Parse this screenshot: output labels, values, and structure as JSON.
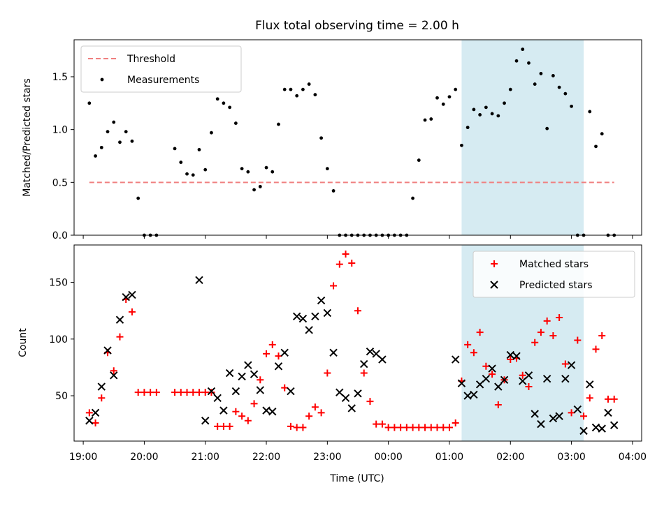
{
  "chart_data": {
    "title": "Flux total observing time = 2.00 h",
    "xlabel": "Time (UTC)",
    "x_ticks": [
      "19:00",
      "20:00",
      "21:00",
      "22:00",
      "23:00",
      "00:00",
      "01:00",
      "02:00",
      "03:00",
      "04:00"
    ],
    "x_range_hours_from_19": [
      -0.15,
      9.15
    ],
    "shaded_span": {
      "start": "01:12",
      "end": "03:12",
      "color": "#add8e6"
    },
    "panels": [
      {
        "type": "scatter",
        "ylabel": "Matched/Predicted stars",
        "ylim": [
          0,
          1.85
        ],
        "y_ticks": [
          0.0,
          0.5,
          1.0,
          1.5
        ],
        "legend_position": "upper-left",
        "threshold": {
          "name": "Threshold",
          "value": 0.5,
          "start": "19:06",
          "end": "03:42",
          "color": "#f08080"
        },
        "series": [
          {
            "name": "Measurements",
            "color": "#000000",
            "x": [
              "19:06",
              "19:12",
              "19:18",
              "19:24",
              "19:30",
              "19:36",
              "19:42",
              "19:48",
              "19:54",
              "20:00",
              "20:06",
              "20:12",
              "20:30",
              "20:36",
              "20:42",
              "20:48",
              "20:54",
              "21:00",
              "21:06",
              "21:12",
              "21:18",
              "21:24",
              "21:30",
              "21:36",
              "21:42",
              "21:48",
              "21:54",
              "22:00",
              "22:06",
              "22:12",
              "22:18",
              "22:24",
              "22:30",
              "22:36",
              "22:42",
              "22:48",
              "22:54",
              "23:00",
              "23:06",
              "23:12",
              "23:18",
              "23:24",
              "23:30",
              "23:36",
              "23:42",
              "23:48",
              "23:54",
              "00:00",
              "00:06",
              "00:12",
              "00:18",
              "00:24",
              "00:30",
              "00:36",
              "00:42",
              "00:48",
              "00:54",
              "01:00",
              "01:06",
              "01:12",
              "01:18",
              "01:24",
              "01:30",
              "01:36",
              "01:42",
              "01:48",
              "01:54",
              "02:00",
              "02:06",
              "02:12",
              "02:18",
              "02:24",
              "02:30",
              "02:36",
              "02:42",
              "02:48",
              "02:54",
              "03:00",
              "03:06",
              "03:12",
              "03:18",
              "03:24",
              "03:30",
              "03:36",
              "03:42"
            ],
            "y": [
              1.25,
              0.75,
              0.83,
              0.98,
              1.07,
              0.88,
              0.98,
              0.89,
              0.35,
              0.0,
              0.0,
              0.0,
              0.82,
              0.69,
              0.58,
              0.57,
              0.81,
              0.62,
              0.97,
              1.29,
              1.25,
              1.21,
              1.06,
              0.63,
              0.6,
              0.43,
              0.46,
              0.64,
              0.6,
              1.05,
              1.38,
              1.38,
              1.32,
              1.38,
              1.43,
              1.33,
              0.92,
              0.63,
              0.42,
              0.0,
              0.0,
              0.0,
              0.0,
              0.0,
              0.0,
              0.0,
              0.0,
              0.0,
              0.0,
              0.0,
              0.0,
              0.35,
              0.71,
              1.09,
              1.1,
              1.3,
              1.24,
              1.31,
              1.38,
              0.85,
              1.02,
              1.19,
              1.14,
              1.21,
              1.15,
              1.13,
              1.25,
              1.38,
              1.65,
              1.76,
              1.63,
              1.43,
              1.53,
              1.01,
              1.51,
              1.4,
              1.34,
              1.22,
              0.0,
              0.0,
              1.17,
              0.84,
              0.96,
              0.0,
              0.0
            ]
          }
        ]
      },
      {
        "type": "scatter",
        "ylabel": "Count",
        "ylim": [
          10,
          183
        ],
        "y_ticks": [
          50,
          100,
          150
        ],
        "legend_position": "upper-right",
        "series": [
          {
            "name": "Matched stars",
            "marker": "+",
            "color": "#ff0000",
            "x": [
              "19:06",
              "19:12",
              "19:18",
              "19:24",
              "19:30",
              "19:36",
              "19:42",
              "19:48",
              "19:54",
              "20:00",
              "20:06",
              "20:12",
              "20:30",
              "20:36",
              "20:42",
              "20:48",
              "20:54",
              "21:00",
              "21:06",
              "21:12",
              "21:18",
              "21:24",
              "21:30",
              "21:36",
              "21:42",
              "21:48",
              "21:54",
              "22:00",
              "22:06",
              "22:12",
              "22:18",
              "22:24",
              "22:30",
              "22:36",
              "22:42",
              "22:48",
              "22:54",
              "23:00",
              "23:06",
              "23:12",
              "23:18",
              "23:24",
              "23:30",
              "23:36",
              "23:42",
              "23:48",
              "23:54",
              "00:00",
              "00:06",
              "00:12",
              "00:18",
              "00:24",
              "00:30",
              "00:36",
              "00:42",
              "00:48",
              "00:54",
              "01:00",
              "01:06",
              "01:12",
              "01:18",
              "01:24",
              "01:30",
              "01:36",
              "01:42",
              "01:48",
              "01:54",
              "02:00",
              "02:06",
              "02:12",
              "02:18",
              "02:24",
              "02:30",
              "02:36",
              "02:42",
              "02:48",
              "02:54",
              "03:00",
              "03:06",
              "03:12",
              "03:18",
              "03:24",
              "03:30",
              "03:36",
              "03:42"
            ],
            "y": [
              35,
              26,
              48,
              88,
              72,
              102,
              135,
              124,
              53,
              53,
              53,
              53,
              53,
              53,
              53,
              53,
              53,
              53,
              53,
              23,
              23,
              23,
              36,
              32,
              28,
              43,
              64,
              87,
              95,
              85,
              57,
              23,
              22,
              22,
              32,
              40,
              35,
              70,
              147,
              166,
              175,
              167,
              125,
              70,
              45,
              25,
              25,
              22,
              22,
              22,
              22,
              22,
              22,
              22,
              22,
              22,
              22,
              22,
              26,
              63,
              95,
              88,
              106,
              76,
              69,
              42,
              64,
              82,
              83,
              68,
              58,
              97,
              106,
              116,
              103,
              119,
              78,
              35,
              99,
              32,
              48,
              91,
              103,
              47,
              47
            ]
          },
          {
            "name": "Predicted stars",
            "marker": "x",
            "color": "#000000",
            "x": [
              "19:06",
              "19:12",
              "19:18",
              "19:24",
              "19:30",
              "19:36",
              "19:42",
              "19:48",
              "20:54",
              "21:00",
              "21:06",
              "21:12",
              "21:18",
              "21:24",
              "21:30",
              "21:36",
              "21:42",
              "21:48",
              "21:54",
              "22:00",
              "22:06",
              "22:12",
              "22:18",
              "22:24",
              "22:30",
              "22:36",
              "22:42",
              "22:48",
              "22:54",
              "23:00",
              "23:06",
              "23:12",
              "23:18",
              "23:24",
              "23:30",
              "23:36",
              "23:42",
              "23:48",
              "23:54",
              "01:06",
              "01:12",
              "01:18",
              "01:24",
              "01:30",
              "01:36",
              "01:42",
              "01:48",
              "01:54",
              "02:00",
              "02:06",
              "02:12",
              "02:18",
              "02:24",
              "02:30",
              "02:36",
              "02:42",
              "02:48",
              "02:54",
              "03:00",
              "03:06",
              "03:12",
              "03:18",
              "03:24",
              "03:30",
              "03:36",
              "03:42"
            ],
            "y": [
              28,
              35,
              58,
              90,
              68,
              117,
              137,
              139,
              152,
              28,
              54,
              48,
              37,
              70,
              54,
              67,
              77,
              69,
              55,
              37,
              36,
              76,
              88,
              54,
              120,
              118,
              108,
              120,
              134,
              123,
              88,
              53,
              48,
              39,
              52,
              78,
              89,
              87,
              82,
              82,
              61,
              50,
              51,
              60,
              65,
              74,
              58,
              64,
              86,
              85,
              63,
              68,
              34,
              25,
              65,
              30,
              32,
              65,
              77,
              38,
              19,
              60,
              22,
              21,
              35,
              24
            ]
          }
        ]
      }
    ]
  }
}
